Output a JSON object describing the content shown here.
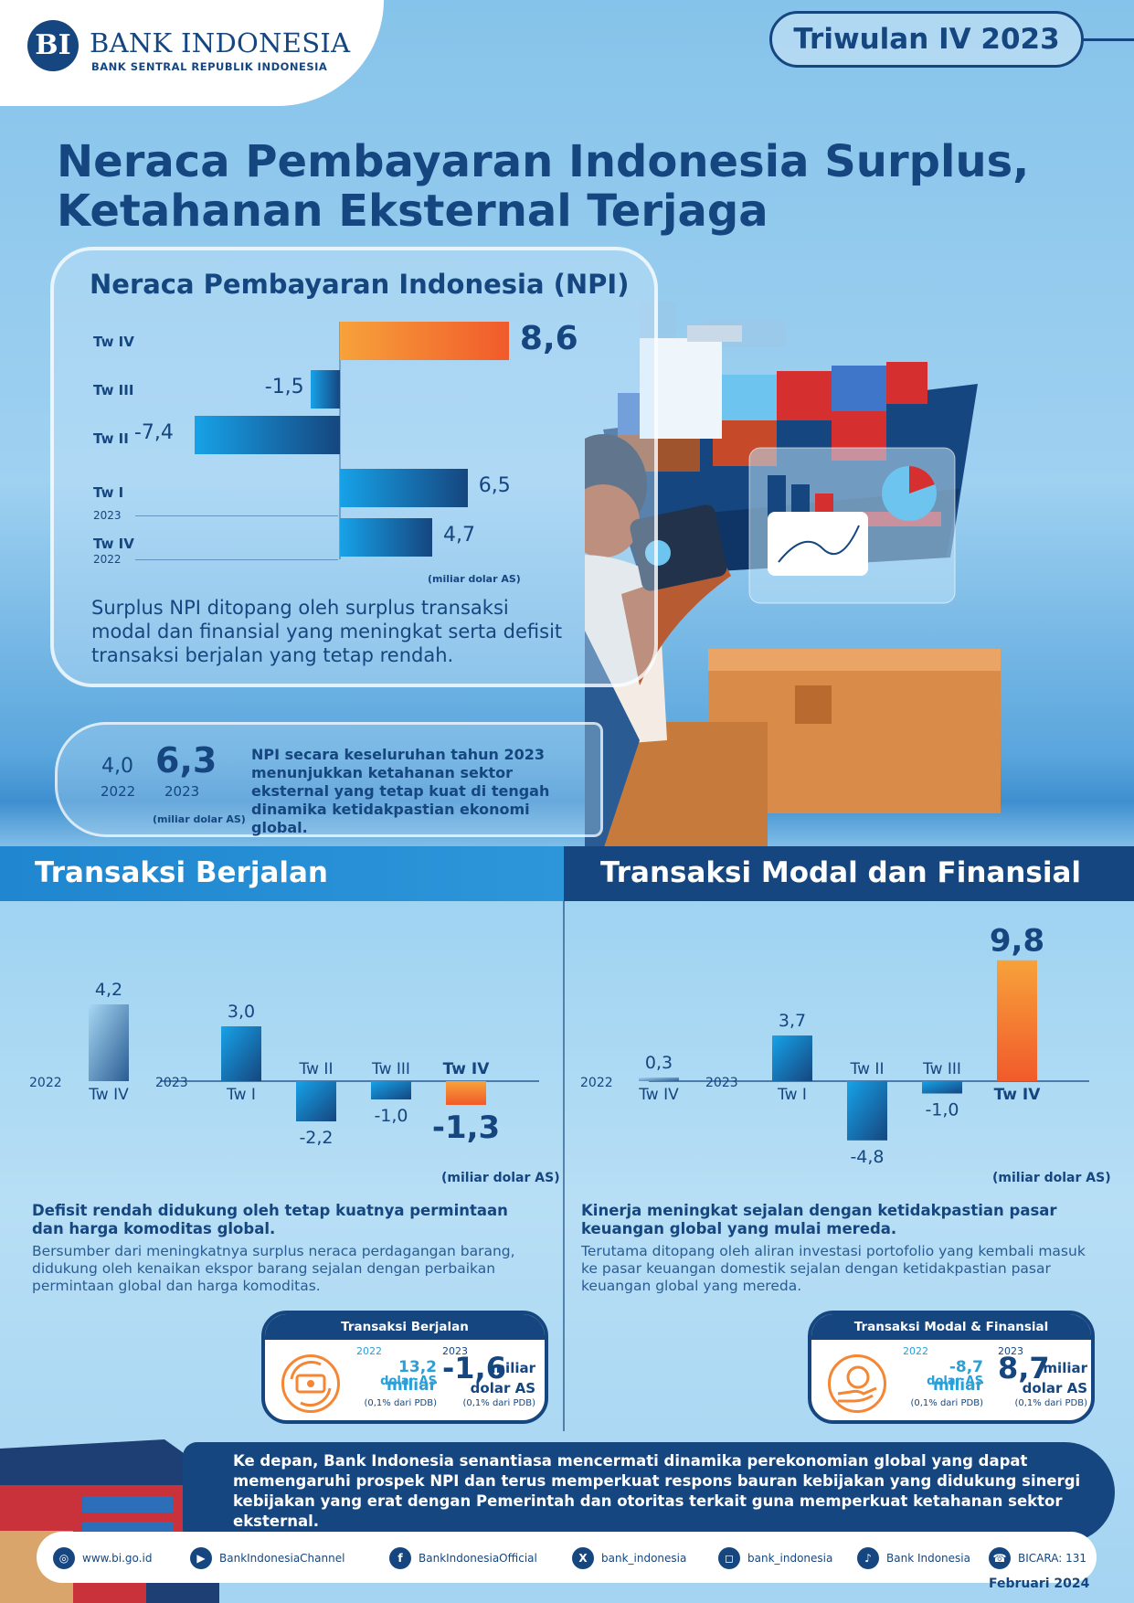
{
  "brand": {
    "logo_mark": "BI",
    "name": "BANK INDONESIA",
    "tagline": "BANK SENTRAL REPUBLIK INDONESIA"
  },
  "period": "Triwulan IV 2023",
  "title_line1": "Neraca Pembayaran Indonesia Surplus,",
  "title_line2": "Ketahanan Eksternal Terjaga",
  "npi": {
    "title": "Neraca Pembayaran Indonesia (NPI)",
    "unit": "(miliar dolar AS)",
    "labels": {
      "tw4_23": "Tw IV",
      "tw3_23": "Tw III",
      "tw2_23": "Tw II",
      "tw1_23": "Tw I",
      "tw4_22": "Tw IV",
      "yr2023": "2023",
      "yr2022": "2022"
    },
    "values_text": {
      "tw4_23": "8,6",
      "tw3_23": "-1,5",
      "tw2_23": "-7,4",
      "tw1_23": "6,5",
      "tw4_22": "4,7"
    },
    "description": "Surplus NPI ditopang oleh surplus transaksi modal dan finansial yang meningkat serta defisit transaksi berjalan yang tetap rendah."
  },
  "annual": {
    "val_2022": "4,0",
    "year_2022": "2022",
    "val_2023": "6,3",
    "year_2023": "2023",
    "unit": "(miliar dolar AS)",
    "text": "NPI secara keseluruhan tahun 2023 menunjukkan ketahanan sektor eksternal yang tetap kuat di tengah dinamika ketidakpastian ekonomi global."
  },
  "current_account": {
    "title": "Transaksi Berjalan",
    "unit": "(miliar dolar AS)",
    "headline": "Defisit rendah didukung oleh tetap kuatnya permintaan dan harga komoditas global.",
    "body": "Bersumber dari meningkatnya surplus neraca perdagangan barang, didukung oleh kenaikan ekspor barang sejalan dengan perbaikan permintaan global dan harga komoditas.",
    "summary": {
      "title": "Transaksi Berjalan",
      "y2022": "2022",
      "v2022": "13,2 miliar",
      "u2022": "dolar AS",
      "n2022": "(0,1% dari PDB)",
      "y2023": "2023",
      "v2023": "-1,6",
      "v2023_suffix": "miliar",
      "u2023": "dolar AS",
      "n2023": "(0,1% dari PDB)"
    }
  },
  "capital_account": {
    "title": "Transaksi Modal dan Finansial",
    "unit": "(miliar dolar AS)",
    "headline": "Kinerja meningkat sejalan dengan ketidakpastian pasar keuangan global yang mulai mereda.",
    "body": "Terutama ditopang oleh aliran investasi portofolio yang kembali masuk ke pasar keuangan domestik sejalan dengan ketidakpastian pasar keuangan global yang mereda.",
    "summary": {
      "title": "Transaksi Modal & Finansial",
      "y2022": "2022",
      "v2022": "-8,7 miliar",
      "u2022": "dolar AS",
      "n2022": "(0,1% dari PDB)",
      "y2023": "2023",
      "v2023": "8,7",
      "v2023_suffix": "miliar",
      "u2023": "dolar AS",
      "n2023": "(0,1% dari PDB)"
    }
  },
  "outlook": "Ke depan, Bank Indonesia senantiasa mencermati dinamika perekonomian global yang dapat memengaruhi prospek NPI dan terus memperkuat respons bauran kebijakan yang didukung sinergi kebijakan yang erat dengan Pemerintah dan otoritas terkait guna memperkuat ketahanan sektor eksternal.",
  "footer": {
    "links": [
      {
        "icon": "globe-icon",
        "text": "www.bi.go.id"
      },
      {
        "icon": "youtube-icon",
        "text": "BankIndonesiaChannel"
      },
      {
        "icon": "facebook-icon",
        "text": "BankIndonesiaOfficial"
      },
      {
        "icon": "x-icon",
        "text": "bank_indonesia"
      },
      {
        "icon": "instagram-icon",
        "text": "bank_indonesia"
      },
      {
        "icon": "tiktok-icon",
        "text": "Bank Indonesia"
      },
      {
        "icon": "bicara-icon",
        "text": "BICARA: 131"
      }
    ],
    "date": "Februari 2024"
  },
  "colors": {
    "navy": "#15467f",
    "sky": "#17a2e8",
    "orange": "#f15a2b",
    "amber": "#f7a23a"
  },
  "chart_data": [
    {
      "type": "bar",
      "orientation": "horizontal",
      "title": "Neraca Pembayaran Indonesia (NPI)",
      "unit": "(miliar dolar AS)",
      "categories": [
        "Tw IV 2023",
        "Tw III 2023",
        "Tw II 2023",
        "Tw I 2023",
        "Tw IV 2022"
      ],
      "values": [
        8.6,
        -1.5,
        -7.4,
        6.5,
        4.7
      ]
    },
    {
      "type": "bar",
      "title": "Transaksi Berjalan",
      "unit": "(miliar dolar AS)",
      "categories": [
        "Tw IV 2022",
        "Tw I 2023",
        "Tw II 2023",
        "Tw III 2023",
        "Tw IV 2023"
      ],
      "tick_labels": [
        "Tw IV",
        "Tw I",
        "Tw II",
        "Tw III",
        "Tw IV"
      ],
      "value_labels": [
        "4,2",
        "3,0",
        "-2,2",
        "-1,0",
        "-1,3"
      ],
      "values": [
        4.2,
        3.0,
        -2.2,
        -1.0,
        -1.3
      ],
      "year_labels": [
        "2022",
        "2023"
      ]
    },
    {
      "type": "bar",
      "title": "Transaksi Modal dan Finansial",
      "unit": "(miliar dolar AS)",
      "categories": [
        "Tw IV 2022",
        "Tw I 2023",
        "Tw II 2023",
        "Tw III 2023",
        "Tw IV 2023"
      ],
      "tick_labels": [
        "Tw IV",
        "Tw I",
        "Tw II",
        "Tw III",
        "Tw IV"
      ],
      "value_labels": [
        "0,3",
        "3,7",
        "-4,8",
        "-1,0",
        "9,8"
      ],
      "values": [
        0.3,
        3.7,
        -4.8,
        -1.0,
        9.8
      ],
      "year_labels": [
        "2022",
        "2023"
      ]
    }
  ]
}
